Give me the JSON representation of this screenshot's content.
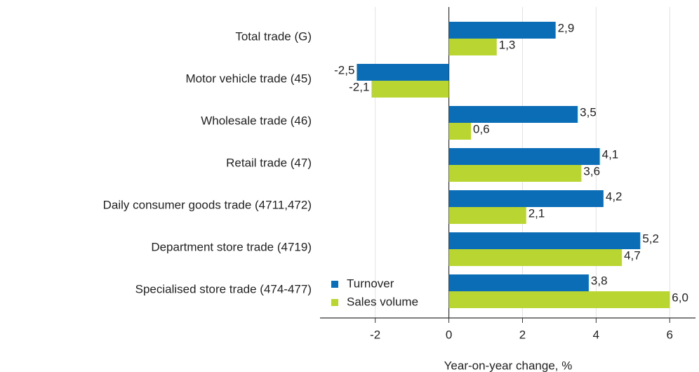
{
  "chart_data": {
    "type": "hbar",
    "xlabel": "Year-on-year change, %",
    "categories": [
      "Total trade (G)",
      "Motor vehicle trade (45)",
      "Wholesale trade (46)",
      "Retail trade (47)",
      "Daily consumer goods trade (4711,472)",
      "Department store trade (4719)",
      "Specialised store trade (474-477)"
    ],
    "series": [
      {
        "name": "Turnover",
        "color": "#0b6db5",
        "values": [
          2.9,
          -2.5,
          3.5,
          4.1,
          4.2,
          5.2,
          3.8
        ],
        "value_labels": [
          "2,9",
          "-2,5",
          "3,5",
          "4,1",
          "4,2",
          "5,2",
          "3,8"
        ]
      },
      {
        "name": "Sales volume",
        "color": "#b9d532",
        "values": [
          1.3,
          -2.1,
          0.6,
          3.6,
          2.1,
          4.7,
          6.0
        ],
        "value_labels": [
          "1,3",
          "-2,1",
          "0,6",
          "3,6",
          "2,1",
          "4,7",
          "6,0"
        ]
      }
    ],
    "xlim": [
      -3.5,
      6.7
    ],
    "xticks": [
      -2,
      0,
      2,
      4,
      6
    ],
    "grid": true,
    "legend": "lower left"
  }
}
